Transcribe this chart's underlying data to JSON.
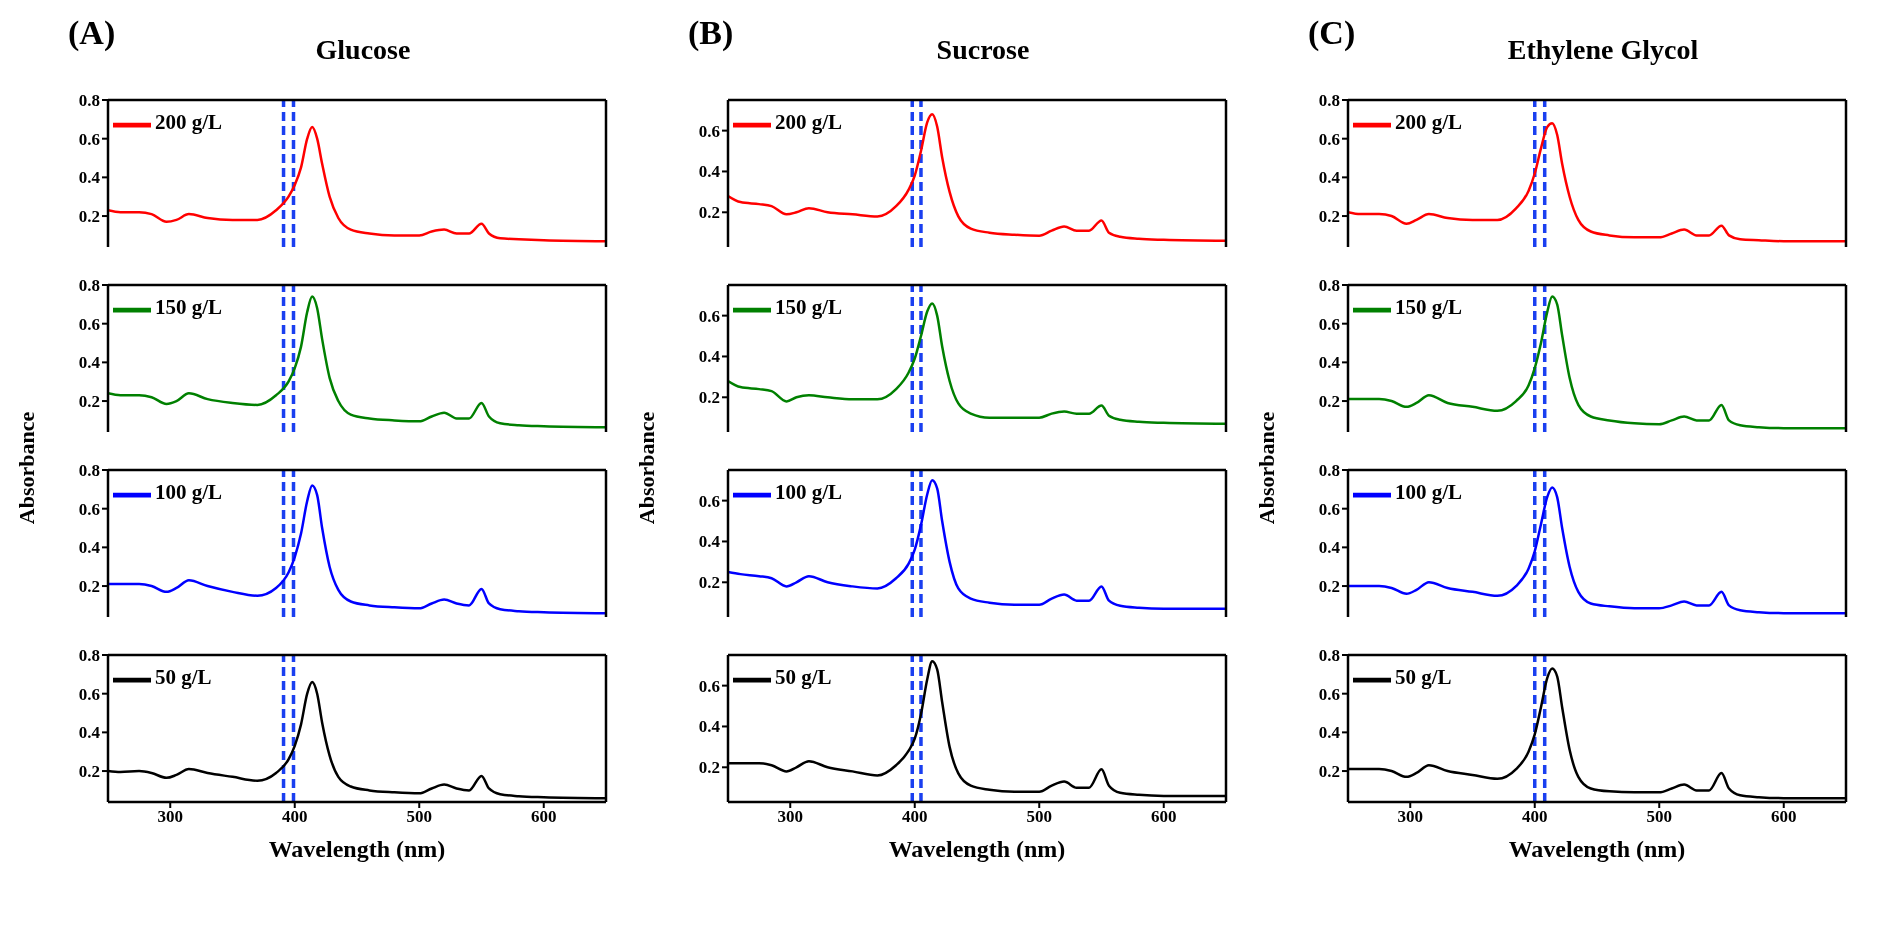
{
  "chart_data": [
    {
      "type": "line",
      "title": "Glucose",
      "annotations": [
        "(A)"
      ],
      "x": [
        250,
        260,
        275,
        285,
        297,
        305,
        315,
        330,
        350,
        370,
        385,
        395,
        400,
        405,
        410,
        414,
        418,
        422,
        428,
        435,
        445,
        460,
        480,
        500,
        510,
        520,
        530,
        540,
        550,
        556,
        565,
        580,
        600,
        650
      ],
      "series": [
        {
          "name": "200 g/L",
          "color": "#ff0000",
          "values": [
            0.23,
            0.22,
            0.22,
            0.21,
            0.17,
            0.18,
            0.21,
            0.19,
            0.18,
            0.18,
            0.23,
            0.3,
            0.36,
            0.45,
            0.6,
            0.66,
            0.6,
            0.47,
            0.3,
            0.19,
            0.13,
            0.11,
            0.1,
            0.1,
            0.12,
            0.13,
            0.11,
            0.11,
            0.16,
            0.11,
            0.085,
            0.08,
            0.075,
            0.07
          ]
        }
      ],
      "xlim": [
        250,
        650
      ],
      "xticks": [
        300,
        400,
        500,
        600
      ],
      "ylim": [
        0.04,
        0.8
      ],
      "yticks": [
        0.2,
        0.4,
        0.6,
        0.8
      ],
      "legend": "top left",
      "tick_labels": "y",
      "line_style": "solid",
      "ref_lines": [
        {
          "axis": "x",
          "value": 391,
          "color": "#1a3ff0",
          "line_style": "dashed"
        },
        {
          "axis": "x",
          "value": 399,
          "color": "#1a3ff0",
          "line_style": "dashed"
        }
      ]
    },
    {
      "type": "line",
      "ylabel": "Absorbance",
      "x": [
        250,
        260,
        275,
        285,
        297,
        305,
        315,
        330,
        350,
        370,
        385,
        395,
        400,
        405,
        410,
        414,
        418,
        422,
        428,
        435,
        445,
        460,
        480,
        500,
        510,
        520,
        530,
        540,
        550,
        556,
        565,
        580,
        600,
        650
      ],
      "series": [
        {
          "name": "150 g/L",
          "color": "#008000",
          "values": [
            0.24,
            0.23,
            0.23,
            0.22,
            0.185,
            0.2,
            0.24,
            0.21,
            0.19,
            0.18,
            0.23,
            0.3,
            0.37,
            0.48,
            0.66,
            0.74,
            0.68,
            0.52,
            0.32,
            0.2,
            0.13,
            0.11,
            0.1,
            0.095,
            0.12,
            0.14,
            0.11,
            0.11,
            0.19,
            0.12,
            0.085,
            0.075,
            0.07,
            0.065
          ]
        }
      ],
      "xlim": [
        250,
        650
      ],
      "xticks": [
        300,
        400,
        500,
        600
      ],
      "ylim": [
        0.04,
        0.8
      ],
      "yticks": [
        0.2,
        0.4,
        0.6,
        0.8
      ],
      "legend": "top left",
      "tick_labels": "y",
      "line_style": "solid",
      "ref_lines": [
        {
          "axis": "x",
          "value": 391,
          "color": "#1a3ff0",
          "line_style": "dashed"
        },
        {
          "axis": "x",
          "value": 399,
          "color": "#1a3ff0",
          "line_style": "dashed"
        }
      ]
    },
    {
      "type": "line",
      "x": [
        250,
        260,
        275,
        285,
        297,
        305,
        315,
        330,
        350,
        370,
        385,
        395,
        400,
        405,
        410,
        414,
        418,
        422,
        428,
        435,
        445,
        460,
        480,
        500,
        510,
        520,
        530,
        540,
        550,
        556,
        565,
        580,
        600,
        650
      ],
      "series": [
        {
          "name": "100 g/L",
          "color": "#0000ff",
          "values": [
            0.21,
            0.21,
            0.21,
            0.2,
            0.17,
            0.19,
            0.23,
            0.2,
            0.17,
            0.15,
            0.19,
            0.27,
            0.35,
            0.47,
            0.64,
            0.72,
            0.67,
            0.5,
            0.3,
            0.18,
            0.12,
            0.1,
            0.09,
            0.085,
            0.11,
            0.13,
            0.11,
            0.1,
            0.185,
            0.11,
            0.08,
            0.07,
            0.065,
            0.06
          ]
        }
      ],
      "xlim": [
        250,
        650
      ],
      "xticks": [
        300,
        400,
        500,
        600
      ],
      "ylim": [
        0.04,
        0.8
      ],
      "yticks": [
        0.2,
        0.4,
        0.6,
        0.8
      ],
      "legend": "top left",
      "tick_labels": "y",
      "line_style": "solid",
      "ref_lines": [
        {
          "axis": "x",
          "value": 391,
          "color": "#1a3ff0",
          "line_style": "dashed"
        },
        {
          "axis": "x",
          "value": 399,
          "color": "#1a3ff0",
          "line_style": "dashed"
        }
      ]
    },
    {
      "type": "line",
      "xlabel": "Wavelength (nm)",
      "x": [
        250,
        260,
        275,
        285,
        297,
        305,
        315,
        330,
        350,
        370,
        385,
        395,
        400,
        405,
        410,
        414,
        418,
        422,
        428,
        435,
        445,
        460,
        480,
        500,
        510,
        520,
        530,
        540,
        550,
        556,
        565,
        580,
        600,
        650
      ],
      "series": [
        {
          "name": "50 g/L",
          "color": "#000000",
          "values": [
            0.2,
            0.195,
            0.2,
            0.19,
            0.165,
            0.18,
            0.21,
            0.19,
            0.17,
            0.15,
            0.19,
            0.26,
            0.33,
            0.44,
            0.6,
            0.66,
            0.6,
            0.45,
            0.28,
            0.17,
            0.12,
            0.1,
            0.09,
            0.085,
            0.11,
            0.13,
            0.11,
            0.1,
            0.175,
            0.11,
            0.08,
            0.07,
            0.065,
            0.06
          ]
        }
      ],
      "xlim": [
        250,
        650
      ],
      "xticks": [
        300,
        400,
        500,
        600
      ],
      "ylim": [
        0.04,
        0.8
      ],
      "yticks": [
        0.2,
        0.4,
        0.6,
        0.8
      ],
      "legend": "top left",
      "line_style": "solid",
      "ref_lines": [
        {
          "axis": "x",
          "value": 391,
          "color": "#1a3ff0",
          "line_style": "dashed"
        },
        {
          "axis": "x",
          "value": 399,
          "color": "#1a3ff0",
          "line_style": "dashed"
        }
      ]
    },
    {
      "type": "line",
      "title": "Sucrose",
      "annotations": [
        "(B)"
      ],
      "x": [
        250,
        260,
        275,
        285,
        297,
        305,
        315,
        330,
        350,
        370,
        385,
        395,
        400,
        405,
        410,
        414,
        418,
        422,
        428,
        435,
        445,
        460,
        480,
        500,
        510,
        520,
        530,
        540,
        550,
        556,
        565,
        580,
        600,
        650
      ],
      "series": [
        {
          "name": "200 g/L",
          "color": "#ff0000",
          "values": [
            0.28,
            0.25,
            0.24,
            0.23,
            0.19,
            0.2,
            0.22,
            0.2,
            0.19,
            0.18,
            0.23,
            0.31,
            0.38,
            0.5,
            0.64,
            0.68,
            0.62,
            0.47,
            0.3,
            0.18,
            0.12,
            0.1,
            0.09,
            0.085,
            0.11,
            0.13,
            0.11,
            0.11,
            0.16,
            0.1,
            0.08,
            0.07,
            0.065,
            0.06
          ]
        }
      ],
      "xlim": [
        250,
        650
      ],
      "xticks": [
        300,
        400,
        500,
        600
      ],
      "ylim": [
        0.03,
        0.75
      ],
      "yticks": [
        0.2,
        0.4,
        0.6
      ],
      "legend": "top left",
      "tick_labels": "y",
      "line_style": "solid",
      "ref_lines": [
        {
          "axis": "x",
          "value": 398,
          "color": "#1a3ff0",
          "line_style": "dashed"
        },
        {
          "axis": "x",
          "value": 405,
          "color": "#1a3ff0",
          "line_style": "dashed"
        }
      ]
    },
    {
      "type": "line",
      "ylabel": "Absorbance",
      "x": [
        250,
        260,
        275,
        285,
        297,
        305,
        315,
        330,
        350,
        370,
        385,
        395,
        400,
        405,
        410,
        414,
        418,
        422,
        428,
        435,
        445,
        460,
        480,
        500,
        510,
        520,
        530,
        540,
        550,
        556,
        565,
        580,
        600,
        650
      ],
      "series": [
        {
          "name": "150 g/L",
          "color": "#008000",
          "values": [
            0.28,
            0.25,
            0.24,
            0.23,
            0.18,
            0.2,
            0.21,
            0.2,
            0.19,
            0.19,
            0.24,
            0.32,
            0.39,
            0.5,
            0.62,
            0.66,
            0.6,
            0.45,
            0.28,
            0.17,
            0.12,
            0.1,
            0.1,
            0.1,
            0.12,
            0.13,
            0.12,
            0.12,
            0.16,
            0.11,
            0.09,
            0.08,
            0.075,
            0.07
          ]
        }
      ],
      "xlim": [
        250,
        650
      ],
      "xticks": [
        300,
        400,
        500,
        600
      ],
      "ylim": [
        0.03,
        0.75
      ],
      "yticks": [
        0.2,
        0.4,
        0.6
      ],
      "legend": "top left",
      "tick_labels": "y",
      "line_style": "solid",
      "ref_lines": [
        {
          "axis": "x",
          "value": 398,
          "color": "#1a3ff0",
          "line_style": "dashed"
        },
        {
          "axis": "x",
          "value": 405,
          "color": "#1a3ff0",
          "line_style": "dashed"
        }
      ]
    },
    {
      "type": "line",
      "x": [
        250,
        260,
        275,
        285,
        297,
        305,
        315,
        330,
        350,
        370,
        385,
        395,
        400,
        405,
        410,
        414,
        418,
        422,
        428,
        435,
        445,
        460,
        480,
        500,
        510,
        520,
        530,
        540,
        550,
        556,
        565,
        580,
        600,
        650
      ],
      "series": [
        {
          "name": "100 g/L",
          "color": "#0000ff",
          "values": [
            0.25,
            0.24,
            0.23,
            0.22,
            0.18,
            0.2,
            0.23,
            0.2,
            0.18,
            0.17,
            0.22,
            0.29,
            0.36,
            0.48,
            0.63,
            0.7,
            0.66,
            0.5,
            0.3,
            0.17,
            0.12,
            0.1,
            0.09,
            0.09,
            0.12,
            0.14,
            0.11,
            0.11,
            0.18,
            0.11,
            0.085,
            0.075,
            0.07,
            0.07
          ]
        }
      ],
      "xlim": [
        250,
        650
      ],
      "xticks": [
        300,
        400,
        500,
        600
      ],
      "ylim": [
        0.03,
        0.75
      ],
      "yticks": [
        0.2,
        0.4,
        0.6
      ],
      "legend": "top left",
      "tick_labels": "y",
      "line_style": "solid",
      "ref_lines": [
        {
          "axis": "x",
          "value": 398,
          "color": "#1a3ff0",
          "line_style": "dashed"
        },
        {
          "axis": "x",
          "value": 405,
          "color": "#1a3ff0",
          "line_style": "dashed"
        }
      ]
    },
    {
      "type": "line",
      "xlabel": "Wavelength (nm)",
      "x": [
        250,
        260,
        275,
        285,
        297,
        305,
        315,
        330,
        350,
        370,
        385,
        395,
        400,
        405,
        410,
        414,
        418,
        422,
        428,
        435,
        445,
        460,
        480,
        500,
        510,
        520,
        530,
        540,
        550,
        556,
        565,
        580,
        600,
        650
      ],
      "series": [
        {
          "name": "50 g/L",
          "color": "#000000",
          "values": [
            0.22,
            0.22,
            0.22,
            0.21,
            0.18,
            0.2,
            0.23,
            0.2,
            0.18,
            0.16,
            0.21,
            0.28,
            0.34,
            0.46,
            0.63,
            0.72,
            0.68,
            0.52,
            0.3,
            0.17,
            0.11,
            0.09,
            0.08,
            0.08,
            0.11,
            0.13,
            0.1,
            0.1,
            0.19,
            0.11,
            0.075,
            0.065,
            0.06,
            0.06
          ]
        }
      ],
      "xlim": [
        250,
        650
      ],
      "xticks": [
        300,
        400,
        500,
        600
      ],
      "ylim": [
        0.03,
        0.75
      ],
      "yticks": [
        0.2,
        0.4,
        0.6
      ],
      "legend": "top left",
      "line_style": "solid",
      "ref_lines": [
        {
          "axis": "x",
          "value": 398,
          "color": "#1a3ff0",
          "line_style": "dashed"
        },
        {
          "axis": "x",
          "value": 405,
          "color": "#1a3ff0",
          "line_style": "dashed"
        }
      ]
    },
    {
      "type": "line",
      "title": "Ethylene Glycol",
      "annotations": [
        "(C)"
      ],
      "x": [
        250,
        260,
        275,
        285,
        297,
        305,
        315,
        330,
        350,
        370,
        385,
        395,
        400,
        405,
        410,
        414,
        418,
        422,
        428,
        435,
        445,
        460,
        480,
        500,
        510,
        520,
        530,
        540,
        550,
        556,
        565,
        580,
        600,
        650
      ],
      "series": [
        {
          "name": "200 g/L",
          "color": "#ff0000",
          "values": [
            0.22,
            0.21,
            0.21,
            0.2,
            0.16,
            0.18,
            0.21,
            0.19,
            0.18,
            0.18,
            0.24,
            0.33,
            0.42,
            0.55,
            0.66,
            0.68,
            0.62,
            0.47,
            0.3,
            0.18,
            0.12,
            0.1,
            0.09,
            0.09,
            0.11,
            0.13,
            0.1,
            0.1,
            0.15,
            0.1,
            0.08,
            0.075,
            0.07,
            0.07
          ]
        }
      ],
      "xlim": [
        250,
        650
      ],
      "xticks": [
        300,
        400,
        500,
        600
      ],
      "ylim": [
        0.04,
        0.8
      ],
      "yticks": [
        0.2,
        0.4,
        0.6,
        0.8
      ],
      "legend": "top left",
      "tick_labels": "y",
      "line_style": "solid",
      "ref_lines": [
        {
          "axis": "x",
          "value": 400,
          "color": "#1a3ff0",
          "line_style": "dashed"
        },
        {
          "axis": "x",
          "value": 408,
          "color": "#1a3ff0",
          "line_style": "dashed"
        }
      ]
    },
    {
      "type": "line",
      "ylabel": "Absorbance",
      "x": [
        250,
        260,
        275,
        285,
        297,
        305,
        315,
        330,
        350,
        370,
        385,
        395,
        400,
        405,
        410,
        414,
        418,
        422,
        428,
        435,
        445,
        460,
        480,
        500,
        510,
        520,
        530,
        540,
        550,
        556,
        565,
        580,
        600,
        650
      ],
      "series": [
        {
          "name": "150 g/L",
          "color": "#008000",
          "values": [
            0.21,
            0.21,
            0.21,
            0.2,
            0.17,
            0.19,
            0.23,
            0.19,
            0.17,
            0.15,
            0.2,
            0.28,
            0.37,
            0.5,
            0.66,
            0.74,
            0.7,
            0.54,
            0.32,
            0.18,
            0.12,
            0.1,
            0.085,
            0.08,
            0.1,
            0.12,
            0.1,
            0.1,
            0.18,
            0.1,
            0.075,
            0.065,
            0.06,
            0.06
          ]
        }
      ],
      "xlim": [
        250,
        650
      ],
      "xticks": [
        300,
        400,
        500,
        600
      ],
      "ylim": [
        0.04,
        0.8
      ],
      "yticks": [
        0.2,
        0.4,
        0.6,
        0.8
      ],
      "legend": "top left",
      "tick_labels": "y",
      "line_style": "solid",
      "ref_lines": [
        {
          "axis": "x",
          "value": 400,
          "color": "#1a3ff0",
          "line_style": "dashed"
        },
        {
          "axis": "x",
          "value": 408,
          "color": "#1a3ff0",
          "line_style": "dashed"
        }
      ]
    },
    {
      "type": "line",
      "x": [
        250,
        260,
        275,
        285,
        297,
        305,
        315,
        330,
        350,
        370,
        385,
        395,
        400,
        405,
        410,
        414,
        418,
        422,
        428,
        435,
        445,
        460,
        480,
        500,
        510,
        520,
        530,
        540,
        550,
        556,
        565,
        580,
        600,
        650
      ],
      "series": [
        {
          "name": "100 g/L",
          "color": "#0000ff",
          "values": [
            0.2,
            0.2,
            0.2,
            0.19,
            0.16,
            0.18,
            0.22,
            0.19,
            0.17,
            0.15,
            0.2,
            0.29,
            0.38,
            0.52,
            0.66,
            0.71,
            0.66,
            0.5,
            0.3,
            0.17,
            0.11,
            0.095,
            0.085,
            0.085,
            0.1,
            0.12,
            0.1,
            0.1,
            0.17,
            0.1,
            0.075,
            0.065,
            0.06,
            0.06
          ]
        }
      ],
      "xlim": [
        250,
        650
      ],
      "xticks": [
        300,
        400,
        500,
        600
      ],
      "ylim": [
        0.04,
        0.8
      ],
      "yticks": [
        0.2,
        0.4,
        0.6,
        0.8
      ],
      "legend": "top left",
      "tick_labels": "y",
      "line_style": "solid",
      "ref_lines": [
        {
          "axis": "x",
          "value": 400,
          "color": "#1a3ff0",
          "line_style": "dashed"
        },
        {
          "axis": "x",
          "value": 408,
          "color": "#1a3ff0",
          "line_style": "dashed"
        }
      ]
    },
    {
      "type": "line",
      "xlabel": "Wavelength (nm)",
      "x": [
        250,
        260,
        275,
        285,
        297,
        305,
        315,
        330,
        350,
        370,
        385,
        395,
        400,
        405,
        410,
        414,
        418,
        422,
        428,
        435,
        445,
        460,
        480,
        500,
        510,
        520,
        530,
        540,
        550,
        556,
        565,
        580,
        600,
        650
      ],
      "series": [
        {
          "name": "50 g/L",
          "color": "#000000",
          "values": [
            0.21,
            0.21,
            0.21,
            0.2,
            0.17,
            0.19,
            0.23,
            0.2,
            0.18,
            0.16,
            0.21,
            0.3,
            0.39,
            0.53,
            0.68,
            0.73,
            0.69,
            0.53,
            0.31,
            0.17,
            0.11,
            0.095,
            0.09,
            0.09,
            0.11,
            0.13,
            0.1,
            0.1,
            0.19,
            0.11,
            0.075,
            0.065,
            0.06,
            0.06
          ]
        }
      ],
      "xlim": [
        250,
        650
      ],
      "xticks": [
        300,
        400,
        500,
        600
      ],
      "ylim": [
        0.04,
        0.8
      ],
      "yticks": [
        0.2,
        0.4,
        0.6,
        0.8
      ],
      "legend": "top left",
      "line_style": "solid",
      "ref_lines": [
        {
          "axis": "x",
          "value": 400,
          "color": "#1a3ff0",
          "line_style": "dashed"
        },
        {
          "axis": "x",
          "value": 408,
          "color": "#1a3ff0",
          "line_style": "dashed"
        }
      ]
    }
  ]
}
